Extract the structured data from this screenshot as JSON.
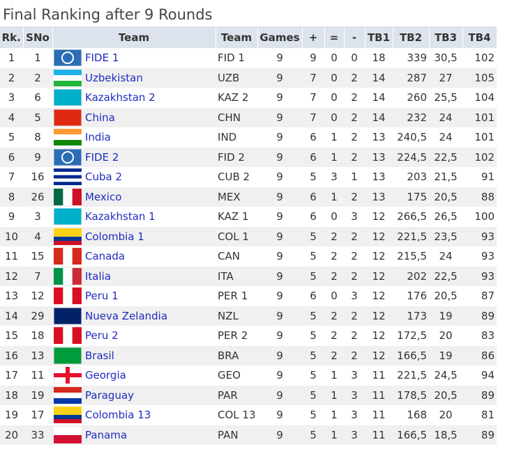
{
  "title": "Final Ranking after 9 Rounds",
  "table": {
    "header": [
      "Rk.",
      "SNo",
      "Team",
      "Team",
      "Games",
      "+",
      "=",
      "-",
      "TB1",
      "TB2",
      "TB3",
      "TB4"
    ],
    "rows": [
      [
        "1",
        "1",
        "FIDE 1",
        "FID 1",
        "9",
        "9",
        "0",
        "0",
        "18",
        "339",
        "30,5",
        "102"
      ],
      [
        "2",
        "2",
        "Uzbekistan",
        "UZB",
        "9",
        "7",
        "0",
        "2",
        "14",
        "287",
        "27",
        "105"
      ],
      [
        "3",
        "6",
        "Kazakhstan 2",
        "KAZ 2",
        "9",
        "7",
        "0",
        "2",
        "14",
        "260",
        "25,5",
        "104"
      ],
      [
        "4",
        "5",
        "China",
        "CHN",
        "9",
        "7",
        "0",
        "2",
        "14",
        "232",
        "24",
        "101"
      ],
      [
        "5",
        "8",
        "India",
        "IND",
        "9",
        "6",
        "1",
        "2",
        "13",
        "240,5",
        "24",
        "101"
      ],
      [
        "6",
        "9",
        "FIDE 2",
        "FID 2",
        "9",
        "6",
        "1",
        "2",
        "13",
        "224,5",
        "22,5",
        "102"
      ],
      [
        "7",
        "16",
        "Cuba 2",
        "CUB 2",
        "9",
        "5",
        "3",
        "1",
        "13",
        "203",
        "21,5",
        "91"
      ],
      [
        "8",
        "26",
        "Mexico",
        "MEX",
        "9",
        "6",
        "1",
        "2",
        "13",
        "175",
        "20,5",
        "88"
      ],
      [
        "9",
        "3",
        "Kazakhstan 1",
        "KAZ 1",
        "9",
        "6",
        "0",
        "3",
        "12",
        "266,5",
        "26,5",
        "100"
      ],
      [
        "10",
        "4",
        "Colombia 1",
        "COL 1",
        "9",
        "5",
        "2",
        "2",
        "12",
        "221,5",
        "23,5",
        "93"
      ],
      [
        "11",
        "15",
        "Canada",
        "CAN",
        "9",
        "5",
        "2",
        "2",
        "12",
        "215,5",
        "24",
        "93"
      ],
      [
        "12",
        "7",
        "Italia",
        "ITA",
        "9",
        "5",
        "2",
        "2",
        "12",
        "202",
        "22,5",
        "93"
      ],
      [
        "13",
        "12",
        "Peru 1",
        "PER 1",
        "9",
        "6",
        "0",
        "3",
        "12",
        "176",
        "20,5",
        "87"
      ],
      [
        "14",
        "29",
        "Nueva Zelandia",
        "NZL",
        "9",
        "5",
        "2",
        "2",
        "12",
        "173",
        "19",
        "89"
      ],
      [
        "15",
        "18",
        "Peru 2",
        "PER 2",
        "9",
        "5",
        "2",
        "2",
        "12",
        "172,5",
        "20",
        "83"
      ],
      [
        "16",
        "13",
        "Brasil",
        "BRA",
        "9",
        "5",
        "2",
        "2",
        "12",
        "166,5",
        "19",
        "86"
      ],
      [
        "17",
        "11",
        "Georgia",
        "GEO",
        "9",
        "5",
        "1",
        "3",
        "11",
        "221,5",
        "24,5",
        "94"
      ],
      [
        "18",
        "19",
        "Paraguay",
        "PAR",
        "9",
        "5",
        "1",
        "3",
        "11",
        "178,5",
        "20,5",
        "89"
      ],
      [
        "19",
        "17",
        "Colombia 13",
        "COL 13",
        "9",
        "5",
        "1",
        "3",
        "11",
        "168",
        "20",
        "81"
      ],
      [
        "20",
        "33",
        "Panama",
        "PAN",
        "9",
        "5",
        "1",
        "3",
        "11",
        "166,5",
        "18,5",
        "89"
      ]
    ]
  }
}
